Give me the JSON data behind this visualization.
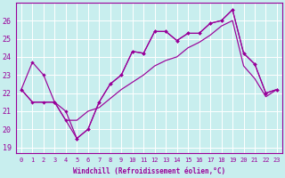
{
  "xlabel": "Windchill (Refroidissement éolien,°C)",
  "bg_color": "#c8eeee",
  "grid_color": "#ffffff",
  "line_color": "#990099",
  "xlim": [
    -0.5,
    23.5
  ],
  "ylim": [
    18.7,
    27.0
  ],
  "ytick_vals": [
    19,
    20,
    21,
    22,
    23,
    24,
    25,
    26
  ],
  "xtick_vals": [
    0,
    1,
    2,
    3,
    4,
    5,
    6,
    7,
    8,
    9,
    10,
    11,
    12,
    13,
    14,
    15,
    16,
    17,
    18,
    19,
    20,
    21,
    22,
    23
  ],
  "line1_x": [
    0,
    1,
    2,
    3,
    4,
    5,
    6,
    7,
    8,
    9,
    10,
    11,
    12,
    13,
    14,
    15,
    16,
    17,
    18,
    19,
    20,
    21,
    22,
    23
  ],
  "line1_y": [
    22.2,
    23.7,
    23.0,
    21.5,
    21.0,
    19.5,
    20.0,
    21.5,
    22.5,
    23.0,
    24.3,
    24.2,
    25.4,
    25.4,
    24.9,
    25.3,
    25.3,
    25.85,
    26.0,
    26.6,
    24.2,
    23.6,
    22.0,
    22.2
  ],
  "line2_x": [
    0,
    1,
    2,
    3,
    4,
    5,
    6,
    7,
    8,
    9,
    10,
    11,
    12,
    13,
    14,
    15,
    16,
    17,
    18,
    19,
    20,
    21,
    22,
    23
  ],
  "line2_y": [
    22.2,
    21.5,
    21.5,
    21.5,
    20.5,
    20.5,
    21.0,
    21.2,
    21.7,
    22.2,
    22.6,
    23.0,
    23.5,
    23.8,
    24.0,
    24.5,
    24.8,
    25.2,
    25.7,
    26.0,
    23.5,
    22.8,
    21.8,
    22.2
  ],
  "line3_x": [
    0,
    1,
    2,
    3,
    4,
    5,
    6,
    7,
    8,
    9,
    10,
    11,
    12,
    13,
    14,
    15,
    16,
    17,
    18,
    19,
    20,
    21,
    22,
    23
  ],
  "line3_y": [
    22.2,
    21.5,
    21.5,
    21.5,
    20.5,
    19.5,
    20.0,
    21.5,
    22.5,
    23.0,
    24.3,
    24.2,
    25.4,
    25.4,
    24.9,
    25.3,
    25.3,
    25.85,
    26.0,
    26.6,
    24.2,
    23.6,
    22.0,
    22.2
  ]
}
